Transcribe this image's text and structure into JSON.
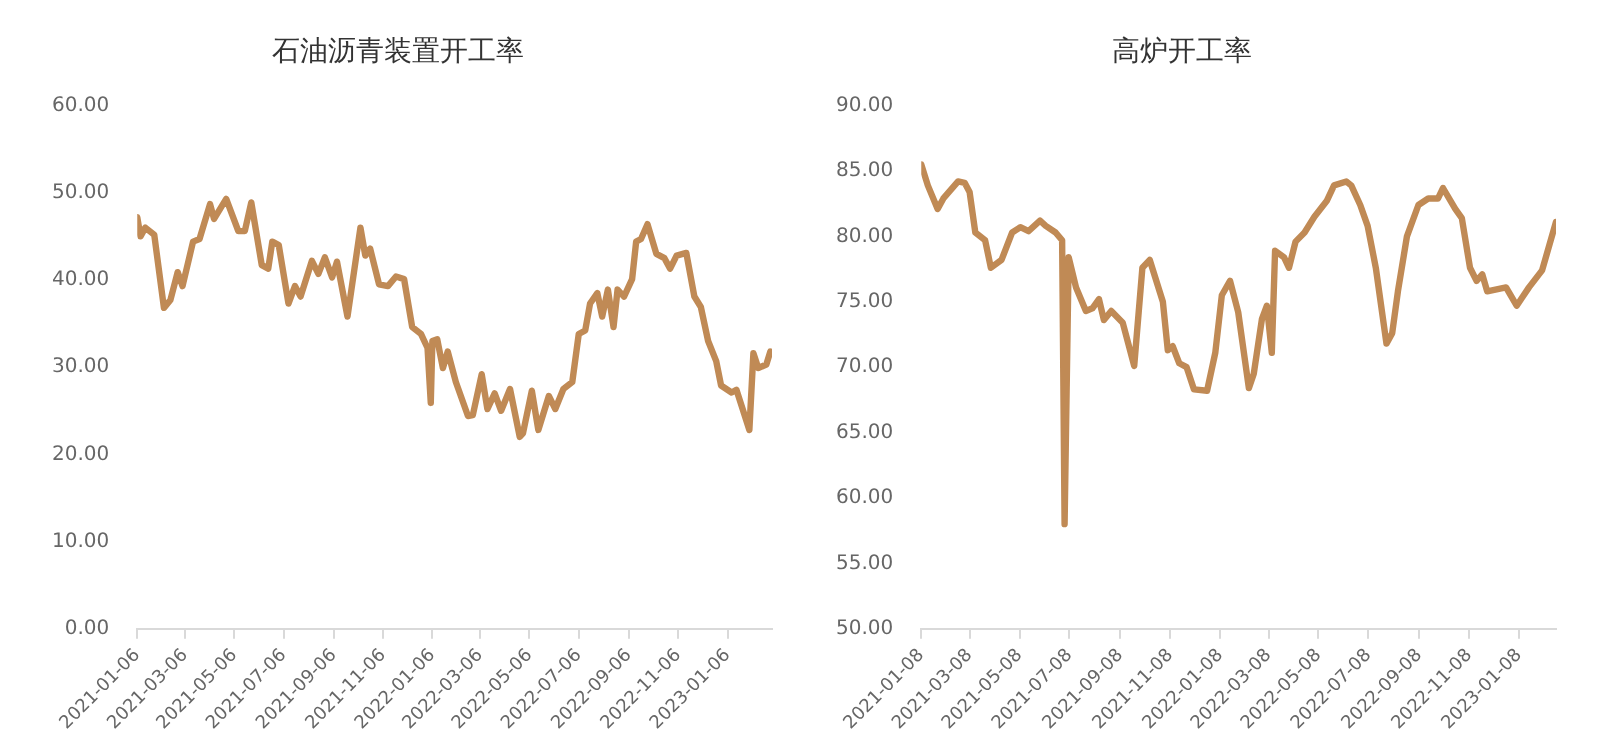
{
  "chart_data": [
    {
      "type": "line",
      "title": "石油沥青装置开工率",
      "color": "#c08a55",
      "x": [
        "2021-01-06",
        "2021-01-10",
        "2021-01-16",
        "2021-01-27",
        "2021-02-08",
        "2021-02-16",
        "2021-02-25",
        "2021-03-03",
        "2021-03-16",
        "2021-03-24",
        "2021-04-06",
        "2021-04-11",
        "2021-04-26",
        "2021-05-11",
        "2021-05-19",
        "2021-05-27",
        "2021-06-09",
        "2021-06-17",
        "2021-06-22",
        "2021-06-30",
        "2021-07-12",
        "2021-07-20",
        "2021-07-27",
        "2021-08-10",
        "2021-08-18",
        "2021-08-26",
        "2021-09-04",
        "2021-09-10",
        "2021-09-23",
        "2021-10-09",
        "2021-10-15",
        "2021-10-21",
        "2021-11-01",
        "2021-11-12",
        "2021-11-22",
        "2021-12-02",
        "2021-12-12",
        "2021-12-23",
        "2021-12-31",
        "2022-01-04",
        "2022-01-06",
        "2022-01-12",
        "2022-01-19",
        "2022-01-25",
        "2022-02-04",
        "2022-02-19",
        "2022-02-25",
        "2022-03-08",
        "2022-03-15",
        "2022-03-24",
        "2022-04-01",
        "2022-04-12",
        "2022-04-24",
        "2022-04-28",
        "2022-05-09",
        "2022-05-17",
        "2022-05-30",
        "2022-06-07",
        "2022-06-17",
        "2022-06-28",
        "2022-07-06",
        "2022-07-14",
        "2022-07-20",
        "2022-07-29",
        "2022-08-04",
        "2022-08-11",
        "2022-08-18",
        "2022-08-23",
        "2022-08-31",
        "2022-09-10",
        "2022-09-15",
        "2022-09-21",
        "2022-09-29",
        "2022-10-10",
        "2022-10-20",
        "2022-10-27",
        "2022-11-04",
        "2022-11-16",
        "2022-11-26",
        "2022-12-04",
        "2022-12-13",
        "2022-12-23",
        "2022-12-29",
        "2023-01-11",
        "2023-01-17",
        "2023-02-02",
        "2023-02-07",
        "2023-02-13",
        "2023-02-23",
        "2023-02-28"
      ],
      "values": [
        47.2,
        45.0,
        46.0,
        45.2,
        36.8,
        37.7,
        40.9,
        39.3,
        44.4,
        44.7,
        48.7,
        47.0,
        49.3,
        45.6,
        45.6,
        48.9,
        41.7,
        41.3,
        44.4,
        44.0,
        37.3,
        39.3,
        38.1,
        42.2,
        40.7,
        42.6,
        40.3,
        42.1,
        35.8,
        46.0,
        42.8,
        43.6,
        39.5,
        39.3,
        40.4,
        40.1,
        34.6,
        33.8,
        32.2,
        25.9,
        33.0,
        33.2,
        29.9,
        31.8,
        28.3,
        24.4,
        24.5,
        29.2,
        25.2,
        27.0,
        25.0,
        27.5,
        22.0,
        22.4,
        27.3,
        22.8,
        26.7,
        25.2,
        27.5,
        28.3,
        33.8,
        34.2,
        37.3,
        38.5,
        35.8,
        38.9,
        34.6,
        38.9,
        38.1,
        40.1,
        44.4,
        44.7,
        46.4,
        43.0,
        42.5,
        41.3,
        42.8,
        43.1,
        38.1,
        36.9,
        33.0,
        30.7,
        27.9,
        27.1,
        27.4,
        22.8,
        31.6,
        29.9,
        30.3,
        31.8
      ],
      "xlim": [
        "2021-01-06",
        "2023-03-02"
      ],
      "xticks": [
        "2021-01-06",
        "2021-03-06",
        "2021-05-06",
        "2021-07-06",
        "2021-09-06",
        "2021-11-06",
        "2022-01-06",
        "2022-03-06",
        "2022-05-06",
        "2022-07-06",
        "2022-09-06",
        "2022-11-06",
        "2023-01-06"
      ],
      "ylim": [
        0,
        60
      ],
      "yticks": [
        {
          "value": 0,
          "label": "0.00"
        },
        {
          "value": 10,
          "label": "10.00"
        },
        {
          "value": 20,
          "label": "20.00"
        },
        {
          "value": 30,
          "label": "30.00"
        },
        {
          "value": 40,
          "label": "40.00"
        },
        {
          "value": 50,
          "label": "50.00"
        },
        {
          "value": 60,
          "label": "60.00"
        }
      ],
      "marker": "none",
      "grid": false,
      "legend": false
    },
    {
      "type": "line",
      "title": "高炉开工率",
      "color": "#c08a55",
      "x": [
        "2021-01-08",
        "2021-01-16",
        "2021-01-28",
        "2021-02-04",
        "2021-02-22",
        "2021-03-02",
        "2021-03-08",
        "2021-03-15",
        "2021-03-27",
        "2021-04-03",
        "2021-04-16",
        "2021-04-29",
        "2021-05-09",
        "2021-05-19",
        "2021-06-02",
        "2021-06-09",
        "2021-06-21",
        "2021-06-29",
        "2021-07-02",
        "2021-07-07",
        "2021-07-16",
        "2021-07-28",
        "2021-08-05",
        "2021-08-13",
        "2021-08-19",
        "2021-08-28",
        "2021-09-11",
        "2021-09-25",
        "2021-10-05",
        "2021-10-14",
        "2021-10-30",
        "2021-11-05",
        "2021-11-11",
        "2021-11-19",
        "2021-11-28",
        "2021-12-07",
        "2021-12-23",
        "2022-01-02",
        "2022-01-10",
        "2022-01-20",
        "2022-01-30",
        "2022-02-12",
        "2022-02-18",
        "2022-02-28",
        "2022-03-06",
        "2022-03-12",
        "2022-03-16",
        "2022-03-27",
        "2022-04-02",
        "2022-04-10",
        "2022-04-21",
        "2022-05-03",
        "2022-05-18",
        "2022-05-27",
        "2022-06-11",
        "2022-06-17",
        "2022-06-28",
        "2022-07-07",
        "2022-07-17",
        "2022-07-30",
        "2022-08-06",
        "2022-08-13",
        "2022-08-24",
        "2022-09-07",
        "2022-09-19",
        "2022-10-01",
        "2022-10-07",
        "2022-10-22",
        "2022-10-30",
        "2022-11-09",
        "2022-11-17",
        "2022-11-24",
        "2022-11-30",
        "2022-12-23",
        "2023-01-05",
        "2023-01-20",
        "2023-02-05",
        "2023-02-22"
      ],
      "values": [
        85.5,
        83.9,
        82.1,
        82.9,
        84.2,
        84.1,
        83.4,
        80.3,
        79.7,
        77.6,
        78.2,
        80.3,
        80.7,
        80.4,
        81.2,
        80.8,
        80.3,
        79.7,
        58.0,
        78.4,
        76.1,
        74.3,
        74.5,
        75.2,
        73.6,
        74.3,
        73.4,
        70.1,
        77.6,
        78.2,
        75.0,
        71.3,
        71.6,
        70.3,
        70.0,
        68.3,
        68.2,
        71.1,
        75.5,
        76.6,
        74.2,
        68.4,
        69.5,
        73.7,
        74.7,
        71.1,
        78.9,
        78.4,
        77.6,
        79.6,
        80.3,
        81.5,
        82.7,
        83.9,
        84.2,
        83.9,
        82.4,
        80.8,
        77.6,
        71.8,
        72.6,
        75.8,
        80.0,
        82.4,
        82.9,
        82.9,
        83.7,
        82.1,
        81.4,
        77.6,
        76.6,
        77.1,
        75.8,
        76.1,
        74.7,
        76.1,
        77.4,
        81.1
      ],
      "xlim": [
        "2021-01-08",
        "2023-02-22"
      ],
      "xticks": [
        "2021-01-08",
        "2021-03-08",
        "2021-05-08",
        "2021-07-08",
        "2021-09-08",
        "2021-11-08",
        "2022-01-08",
        "2022-03-08",
        "2022-05-08",
        "2022-07-08",
        "2022-09-08",
        "2022-11-08",
        "2023-01-08"
      ],
      "ylim": [
        50,
        90
      ],
      "yticks": [
        {
          "value": 50,
          "label": "50.00"
        },
        {
          "value": 55,
          "label": "55.00"
        },
        {
          "value": 60,
          "label": "60.00"
        },
        {
          "value": 65,
          "label": "65.00"
        },
        {
          "value": 70,
          "label": "70.00"
        },
        {
          "value": 75,
          "label": "75.00"
        },
        {
          "value": 80,
          "label": "80.00"
        },
        {
          "value": 85,
          "label": "85.00"
        },
        {
          "value": 90,
          "label": "90.00"
        }
      ],
      "marker": "none",
      "grid": false,
      "legend": false
    }
  ]
}
